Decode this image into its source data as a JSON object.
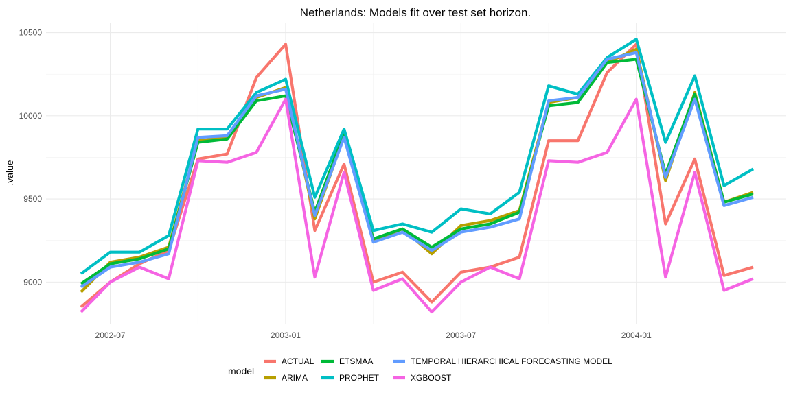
{
  "chart_data": {
    "type": "line",
    "title": "Netherlands: Models fit over test set horizon.",
    "xlabel": "",
    "ylabel": ".value",
    "x": [
      "2002-06",
      "2002-07",
      "2002-08",
      "2002-09",
      "2002-10",
      "2002-11",
      "2002-12",
      "2003-01",
      "2003-02",
      "2003-03",
      "2003-04",
      "2003-05",
      "2003-06",
      "2003-07",
      "2003-08",
      "2003-09",
      "2003-10",
      "2003-11",
      "2003-12",
      "2004-01",
      "2004-02",
      "2004-03",
      "2004-04",
      "2004-05"
    ],
    "x_ticks": [
      "2002-07",
      "2003-01",
      "2003-07",
      "2004-01"
    ],
    "y_ticks": [
      9000,
      9500,
      10000,
      10500
    ],
    "ylim": [
      8750,
      10560
    ],
    "grid": true,
    "legend": {
      "title": "model",
      "position": "bottom"
    },
    "series": [
      {
        "name": "ACTUAL",
        "color": "#F8766D",
        "values": [
          8850,
          9000,
          9110,
          9190,
          9740,
          9770,
          10230,
          10430,
          9310,
          9710,
          9000,
          9060,
          8880,
          9060,
          9090,
          9150,
          9850,
          9850,
          10260,
          10430,
          9350,
          9740,
          9040,
          9090
        ]
      },
      {
        "name": "ARIMA",
        "color": "#B79F00",
        "values": [
          8940,
          9120,
          9150,
          9210,
          9850,
          9870,
          10110,
          10170,
          9380,
          9880,
          9250,
          9320,
          9170,
          9340,
          9370,
          9430,
          10080,
          10110,
          10320,
          10400,
          9610,
          10140,
          9480,
          9540
        ]
      },
      {
        "name": "ETSMAA",
        "color": "#00BA38",
        "values": [
          8990,
          9110,
          9140,
          9200,
          9840,
          9860,
          10090,
          10120,
          9420,
          9900,
          9260,
          9320,
          9210,
          9320,
          9350,
          9420,
          10060,
          10080,
          10320,
          10340,
          9650,
          10130,
          9480,
          9530
        ]
      },
      {
        "name": "PROPHET",
        "color": "#00BFC4",
        "values": [
          9050,
          9180,
          9180,
          9280,
          9920,
          9920,
          10140,
          10220,
          9510,
          9920,
          9310,
          9350,
          9300,
          9440,
          9410,
          9540,
          10180,
          10130,
          10350,
          10460,
          9840,
          10240,
          9580,
          9680
        ]
      },
      {
        "name": "TEMPORAL HIERARCHICAL FORECASTING MODEL",
        "color": "#619CFF",
        "values": [
          8970,
          9090,
          9120,
          9170,
          9870,
          9880,
          10120,
          10160,
          9400,
          9870,
          9240,
          9300,
          9190,
          9300,
          9330,
          9380,
          10090,
          10110,
          10340,
          10380,
          9630,
          10100,
          9460,
          9510
        ]
      },
      {
        "name": "XGBOOST",
        "color": "#F564E3",
        "values": [
          8820,
          9000,
          9090,
          9020,
          9730,
          9720,
          9780,
          10100,
          9030,
          9660,
          8950,
          9020,
          8820,
          9000,
          9090,
          9020,
          9730,
          9720,
          9780,
          10100,
          9030,
          9660,
          8950,
          9020
        ]
      }
    ]
  }
}
